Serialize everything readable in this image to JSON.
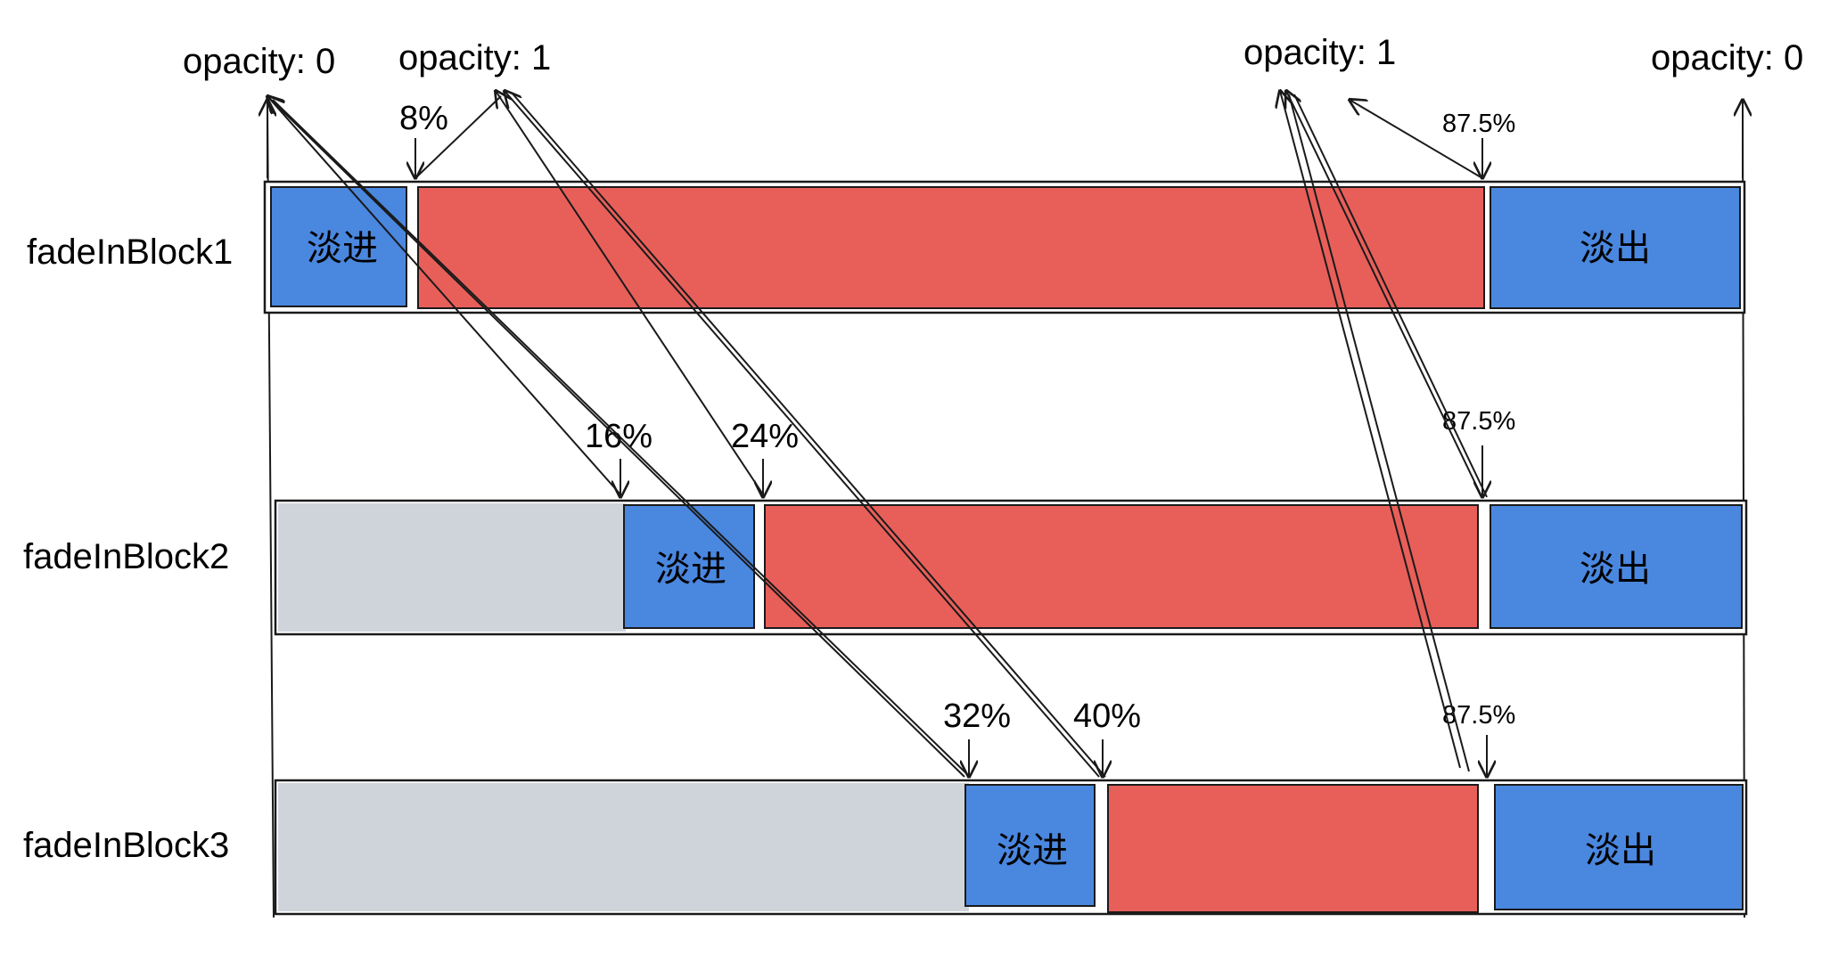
{
  "top_labels": {
    "fade_in_start": "opacity: 0",
    "fade_in_end": "opacity: 1",
    "fade_out_start": "opacity: 1",
    "fade_out_end": "opacity: 0"
  },
  "rows": [
    {
      "label": "fadeInBlock1",
      "fade_in_label": "淡进",
      "fade_out_label": "淡出",
      "fade_in_start_pct": "",
      "fade_in_end_pct": "8%",
      "fade_out_start_pct": "87.5%",
      "delay_fraction": 0.0,
      "fade_in_end_fraction": 0.08,
      "fade_out_start_fraction": 0.875
    },
    {
      "label": "fadeInBlock2",
      "fade_in_label": "淡进",
      "fade_out_label": "淡出",
      "fade_in_start_pct": "16%",
      "fade_in_end_pct": "24%",
      "fade_out_start_pct": "87.5%",
      "delay_fraction": 0.16,
      "fade_in_end_fraction": 0.24,
      "fade_out_start_fraction": 0.875
    },
    {
      "label": "fadeInBlock3",
      "fade_in_label": "淡进",
      "fade_out_label": "淡出",
      "fade_in_start_pct": "32%",
      "fade_in_end_pct": "40%",
      "fade_out_start_pct": "87.5%",
      "delay_fraction": 0.32,
      "fade_in_end_fraction": 0.4,
      "fade_out_start_fraction": 0.875
    }
  ],
  "colors": {
    "delay": "#cfd4da",
    "fade": "#4a87df",
    "visible": "#e85f5a",
    "stroke": "#1a1a1a"
  }
}
